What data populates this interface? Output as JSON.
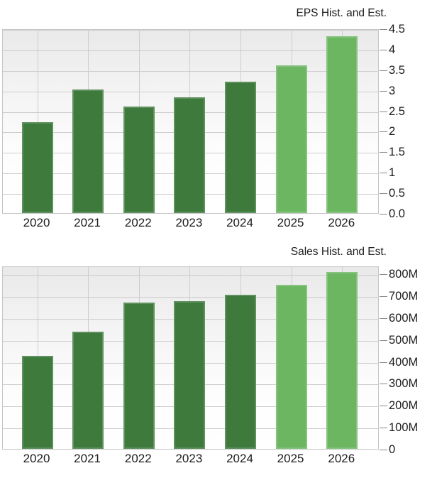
{
  "colors": {
    "historical_bar": "#3e7a3c",
    "estimate_bar": "#6cb662",
    "gridline": "#cdcdcd",
    "plot_border": "#c6c6c6",
    "tick_mark": "#8a8a8a",
    "text": "#1c1c1c",
    "plot_background_top": "#e9e9e9",
    "plot_background_bottom": "#ffffff"
  },
  "chart_data": [
    {
      "type": "bar",
      "title": "EPS Hist. and Est.",
      "xlabel": "",
      "ylabel": "",
      "categories": [
        "2020",
        "2021",
        "2022",
        "2023",
        "2024",
        "2025",
        "2026"
      ],
      "values": [
        2.21,
        3.01,
        2.59,
        2.82,
        3.21,
        3.6,
        4.31
      ],
      "bar_kinds": [
        "historical",
        "historical",
        "historical",
        "historical",
        "historical",
        "estimate",
        "estimate"
      ],
      "ylim": [
        0,
        4.5
      ],
      "yticks": [
        {
          "v": 0,
          "label": "0.0"
        },
        {
          "v": 0.5,
          "label": "0.5"
        },
        {
          "v": 1,
          "label": "1"
        },
        {
          "v": 1.5,
          "label": "1.5"
        },
        {
          "v": 2,
          "label": "2"
        },
        {
          "v": 2.5,
          "label": "2.5"
        },
        {
          "v": 3,
          "label": "3"
        },
        {
          "v": 3.5,
          "label": "3.5"
        },
        {
          "v": 4,
          "label": "4"
        },
        {
          "v": 4.5,
          "label": "4.5"
        }
      ],
      "grid": true,
      "legend_position": "none",
      "ytick_side": "right"
    },
    {
      "type": "bar",
      "title": "Sales Hist. and Est.",
      "xlabel": "",
      "ylabel": "",
      "categories": [
        "2020",
        "2021",
        "2022",
        "2023",
        "2024",
        "2025",
        "2026"
      ],
      "values": [
        425,
        535,
        668,
        675,
        703,
        750,
        806
      ],
      "values_unit": "M",
      "bar_kinds": [
        "historical",
        "historical",
        "historical",
        "historical",
        "historical",
        "estimate",
        "estimate"
      ],
      "ylim": [
        0,
        836
      ],
      "yticks": [
        {
          "v": 0,
          "label": "0"
        },
        {
          "v": 100,
          "label": "100M"
        },
        {
          "v": 200,
          "label": "200M"
        },
        {
          "v": 300,
          "label": "300M"
        },
        {
          "v": 400,
          "label": "400M"
        },
        {
          "v": 500,
          "label": "500M"
        },
        {
          "v": 600,
          "label": "600M"
        },
        {
          "v": 700,
          "label": "700M"
        },
        {
          "v": 800,
          "label": "800M"
        }
      ],
      "grid": true,
      "legend_position": "none",
      "ytick_side": "right"
    }
  ]
}
